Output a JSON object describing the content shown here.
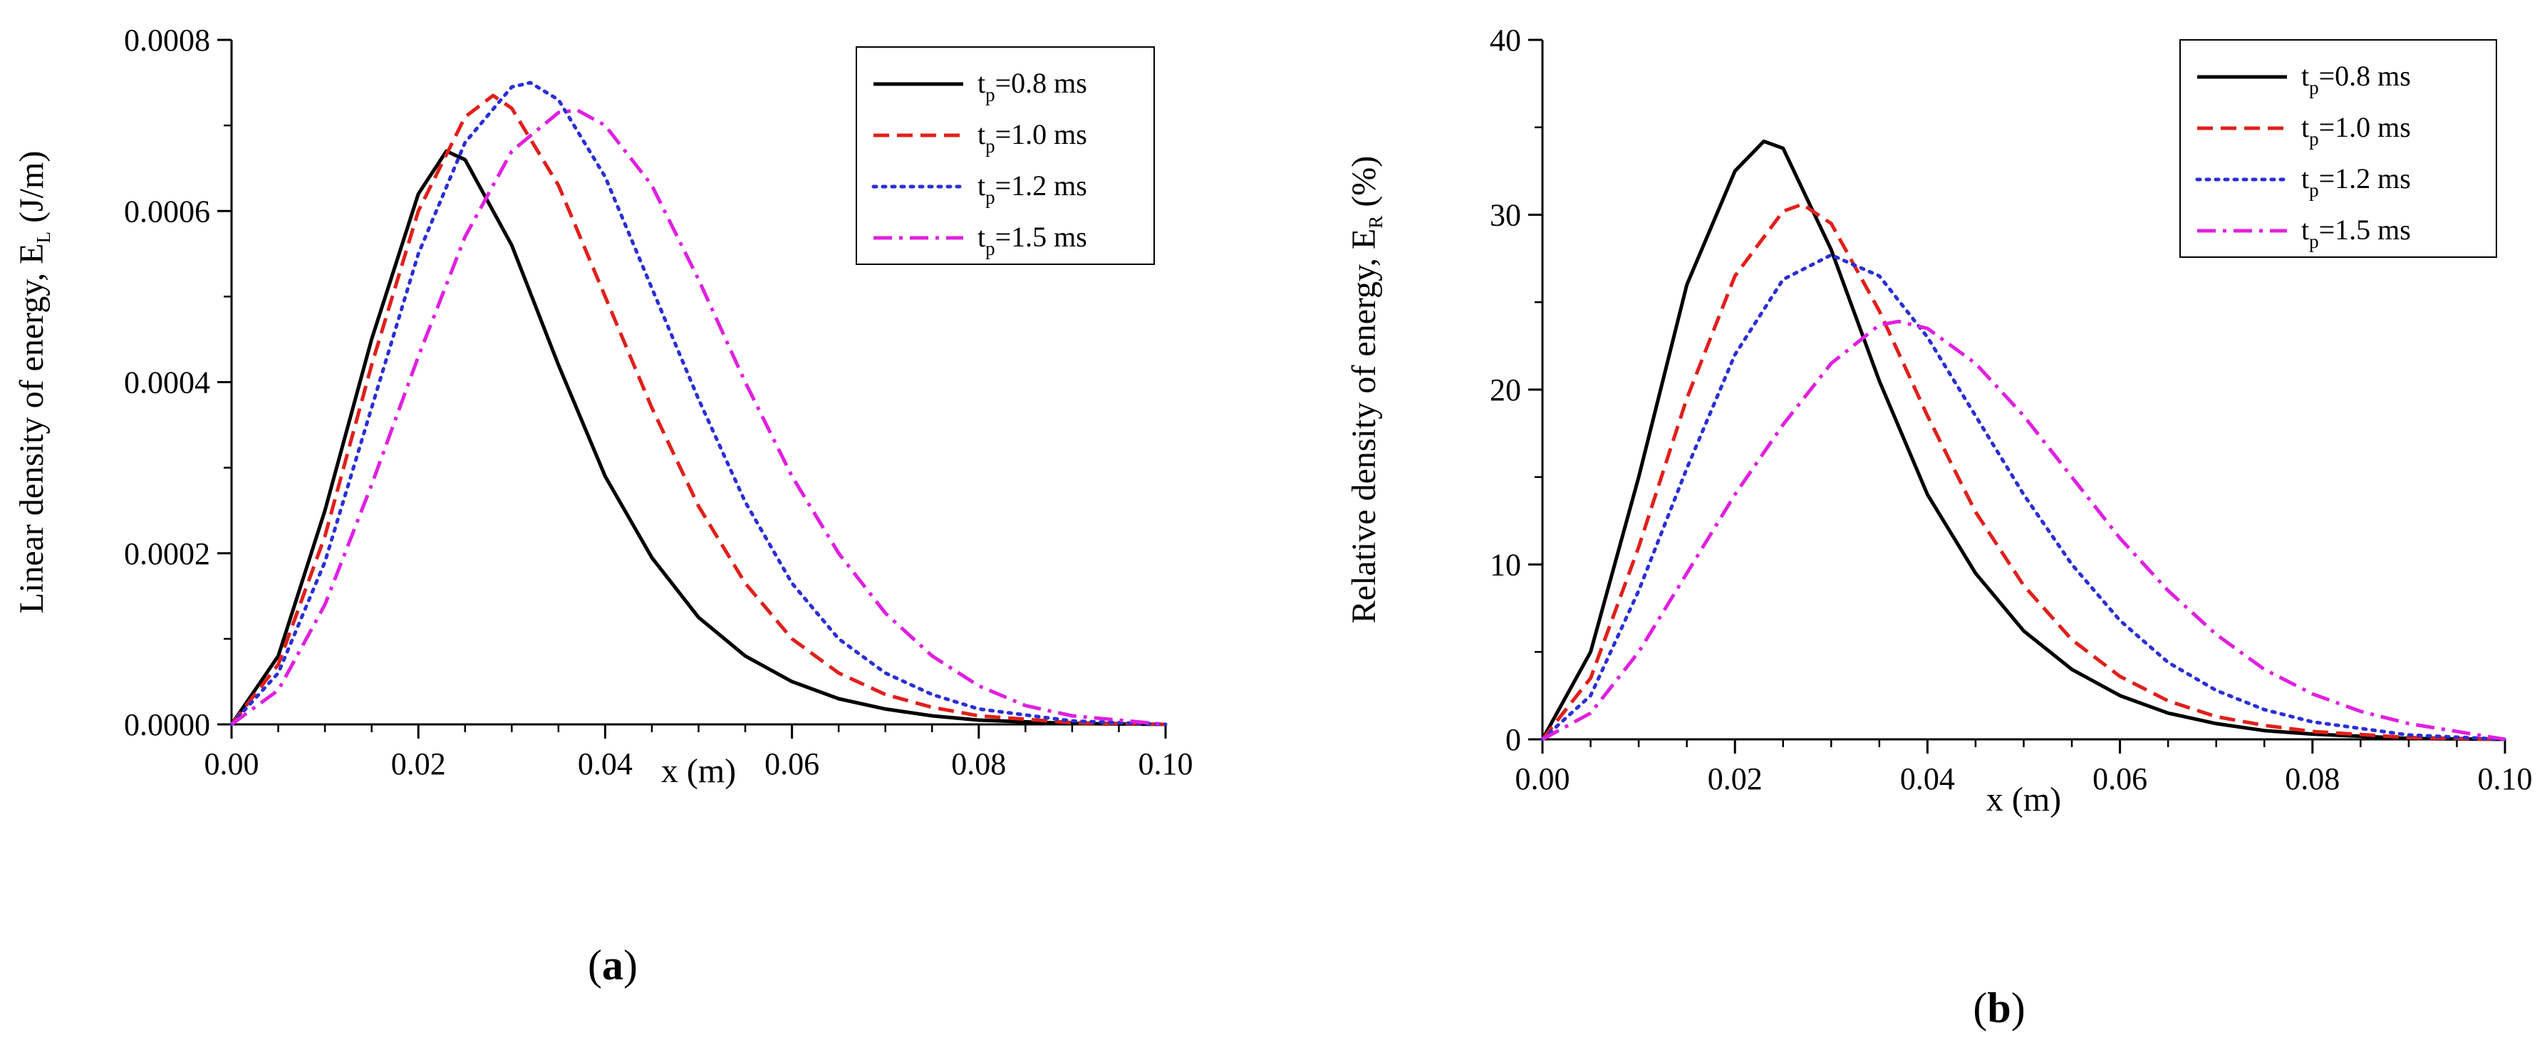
{
  "chart_data": [
    {
      "type": "line",
      "panel_label": {
        "open": "(",
        "letter": "a",
        "close": ")"
      },
      "xlabel": "x (m)",
      "ylabel_main": "Linear density of energy, E",
      "ylabel_sub": "L",
      "ylabel_unit": " (J/m)",
      "xlim": [
        0,
        0.1
      ],
      "ylim": [
        0,
        0.0008
      ],
      "xticks": [
        0.0,
        0.02,
        0.04,
        0.06,
        0.08,
        0.1
      ],
      "xtick_labels": [
        "0.00",
        "0.02",
        "0.04",
        "0.06",
        "0.08",
        "0.10"
      ],
      "yticks": [
        0,
        0.0002,
        0.0004,
        0.0006,
        0.0008
      ],
      "ytick_labels": [
        "0.0000",
        "0.0002",
        "0.0004",
        "0.0006",
        "0.0008"
      ],
      "legend_placement": "top-right",
      "series": [
        {
          "name_main": "t",
          "name_sub": "p",
          "name_rest": "=0.8 ms",
          "color": "#000000",
          "dash": "solid",
          "x": [
            0,
            0.005,
            0.01,
            0.015,
            0.02,
            0.023,
            0.025,
            0.03,
            0.035,
            0.04,
            0.045,
            0.05,
            0.055,
            0.06,
            0.065,
            0.07,
            0.075,
            0.08,
            0.09,
            0.1
          ],
          "y": [
            0,
            8e-05,
            0.00025,
            0.00045,
            0.00062,
            0.00067,
            0.00066,
            0.00056,
            0.00042,
            0.00029,
            0.000195,
            0.000125,
            8e-05,
            5e-05,
            3e-05,
            1.8e-05,
            1e-05,
            5e-06,
            1e-06,
            0
          ]
        },
        {
          "name_main": "t",
          "name_sub": "p",
          "name_rest": "=1.0 ms",
          "color": "#e0201b",
          "dash": "dashed",
          "x": [
            0,
            0.005,
            0.01,
            0.015,
            0.02,
            0.025,
            0.028,
            0.03,
            0.035,
            0.04,
            0.045,
            0.05,
            0.055,
            0.06,
            0.065,
            0.07,
            0.075,
            0.08,
            0.09,
            0.1
          ],
          "y": [
            0,
            7e-05,
            0.00022,
            0.00042,
            0.0006,
            0.00071,
            0.000735,
            0.00072,
            0.00063,
            0.0005,
            0.00037,
            0.000255,
            0.000165,
            0.0001,
            6e-05,
            3.5e-05,
            2e-05,
            1e-05,
            2e-06,
            0
          ]
        },
        {
          "name_main": "t",
          "name_sub": "p",
          "name_rest": "=1.2 ms",
          "color": "#2a2fd6",
          "dash": "dotted",
          "x": [
            0,
            0.005,
            0.01,
            0.015,
            0.02,
            0.025,
            0.03,
            0.032,
            0.035,
            0.04,
            0.045,
            0.05,
            0.055,
            0.06,
            0.065,
            0.07,
            0.075,
            0.08,
            0.09,
            0.1
          ],
          "y": [
            0,
            6e-05,
            0.00019,
            0.00037,
            0.00055,
            0.00068,
            0.000745,
            0.00075,
            0.00073,
            0.00064,
            0.00051,
            0.00038,
            0.00026,
            0.000165,
            0.0001,
            6e-05,
            3.5e-05,
            1.8e-05,
            4e-06,
            0
          ]
        },
        {
          "name_main": "t",
          "name_sub": "p",
          "name_rest": "=1.5 ms",
          "color": "#e020e0",
          "dash": "dashdot",
          "x": [
            0,
            0.005,
            0.01,
            0.015,
            0.02,
            0.025,
            0.03,
            0.035,
            0.037,
            0.04,
            0.045,
            0.05,
            0.055,
            0.06,
            0.065,
            0.07,
            0.075,
            0.08,
            0.085,
            0.09,
            0.1
          ],
          "y": [
            0,
            4e-05,
            0.00014,
            0.00028,
            0.00043,
            0.00057,
            0.00067,
            0.000715,
            0.000718,
            0.0007,
            0.00063,
            0.00052,
            0.0004,
            0.00029,
            0.0002,
            0.00013,
            8e-05,
            4.5e-05,
            2.2e-05,
            1e-05,
            0
          ]
        }
      ]
    },
    {
      "type": "line",
      "panel_label": {
        "open": "(",
        "letter": "b",
        "close": ")"
      },
      "xlabel": "x (m)",
      "ylabel_main": "Relative density of energy, E",
      "ylabel_sub": "R",
      "ylabel_unit": " (%)",
      "xlim": [
        0,
        0.1
      ],
      "ylim": [
        0,
        40
      ],
      "xticks": [
        0.0,
        0.02,
        0.04,
        0.06,
        0.08,
        0.1
      ],
      "xtick_labels": [
        "0.00",
        "0.02",
        "0.04",
        "0.06",
        "0.08",
        "0.10"
      ],
      "yticks": [
        0,
        10,
        20,
        30,
        40
      ],
      "ytick_labels": [
        "0",
        "10",
        "20",
        "30",
        "40"
      ],
      "legend_placement": "top-right",
      "series": [
        {
          "name_main": "t",
          "name_sub": "p",
          "name_rest": "=0.8 ms",
          "color": "#000000",
          "dash": "solid",
          "x": [
            0,
            0.005,
            0.01,
            0.015,
            0.02,
            0.023,
            0.025,
            0.03,
            0.035,
            0.04,
            0.045,
            0.05,
            0.055,
            0.06,
            0.065,
            0.07,
            0.075,
            0.08,
            0.09,
            0.1
          ],
          "y": [
            0,
            5,
            15,
            26,
            32.5,
            34.2,
            33.8,
            28,
            20.5,
            14,
            9.5,
            6.2,
            4,
            2.5,
            1.5,
            0.9,
            0.5,
            0.3,
            0.05,
            0
          ]
        },
        {
          "name_main": "t",
          "name_sub": "p",
          "name_rest": "=1.0 ms",
          "color": "#e0201b",
          "dash": "dashed",
          "x": [
            0,
            0.005,
            0.01,
            0.015,
            0.02,
            0.025,
            0.027,
            0.03,
            0.035,
            0.04,
            0.045,
            0.05,
            0.055,
            0.06,
            0.065,
            0.07,
            0.075,
            0.08,
            0.09,
            0.1
          ],
          "y": [
            0,
            3.5,
            11,
            19.5,
            26.5,
            30.2,
            30.6,
            29.5,
            24.5,
            18.5,
            13,
            8.8,
            5.7,
            3.6,
            2.2,
            1.3,
            0.8,
            0.45,
            0.1,
            0
          ]
        },
        {
          "name_main": "t",
          "name_sub": "p",
          "name_rest": "=1.2 ms",
          "color": "#2a2fd6",
          "dash": "dotted",
          "x": [
            0,
            0.005,
            0.01,
            0.015,
            0.02,
            0.025,
            0.03,
            0.035,
            0.04,
            0.045,
            0.05,
            0.055,
            0.06,
            0.065,
            0.07,
            0.075,
            0.08,
            0.09,
            0.1
          ],
          "y": [
            0,
            2.5,
            8.5,
            15.5,
            22,
            26.3,
            27.7,
            26.5,
            23,
            18.5,
            14,
            10,
            6.8,
            4.4,
            2.8,
            1.7,
            1,
            0.25,
            0
          ]
        },
        {
          "name_main": "t",
          "name_sub": "p",
          "name_rest": "=1.5 ms",
          "color": "#e020e0",
          "dash": "dashdot",
          "x": [
            0,
            0.005,
            0.01,
            0.015,
            0.02,
            0.025,
            0.03,
            0.035,
            0.037,
            0.04,
            0.045,
            0.05,
            0.055,
            0.06,
            0.065,
            0.07,
            0.075,
            0.08,
            0.085,
            0.09,
            0.1
          ],
          "y": [
            0,
            1.5,
            5,
            9.5,
            14,
            18,
            21.5,
            23.7,
            23.9,
            23.5,
            21.5,
            18.5,
            15,
            11.5,
            8.5,
            6,
            4,
            2.6,
            1.6,
            0.9,
            0
          ]
        }
      ]
    }
  ]
}
